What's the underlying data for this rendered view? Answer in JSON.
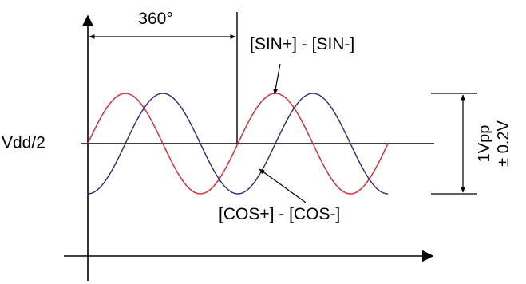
{
  "labels": {
    "period": "360°",
    "sin_signal": "[SIN+] - [SIN-]",
    "cos_signal": "[COS+] - [COS-]",
    "midline": "Vdd/2",
    "amplitude_line1": "1Vpp",
    "amplitude_line2": "± 0.2V"
  },
  "colors": {
    "sin_wave": "#e0202a",
    "cos_wave": "#2a2a7a",
    "lines": "#000000"
  },
  "waves": {
    "periods_shown": 2,
    "phase_shift_degrees": 90
  }
}
